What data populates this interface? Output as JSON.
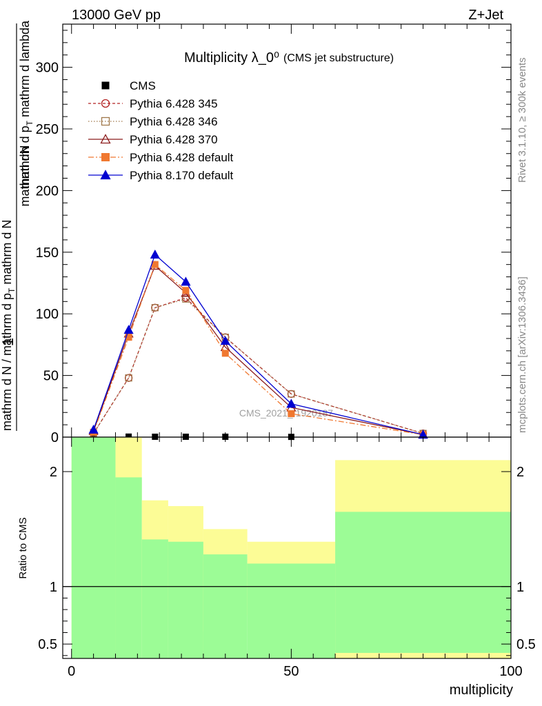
{
  "header": {
    "left": "13000 GeV pp",
    "right": "Z+Jet"
  },
  "side_labels": {
    "rivet": "Rivet 3.1.10, ≥ 300k events",
    "mcplots": "mcplots.cern.ch [arXiv:1306.3436]"
  },
  "chart_data": [
    {
      "type": "line",
      "title": "Multiplicity λ_0⁰",
      "subtitle": "(CMS jet substructure)",
      "ylabel_top": "1",
      "ylabel_top_parts": [
        "mathrm dN",
        "mathrm d p",
        "T",
        " mathrm d lambda"
      ],
      "ylabel_bottom": "mathrm d N / mathrm d p",
      "ylabel_bottom_sub": "T",
      "ylabel_bottom_end": " mathrm d N",
      "watermark": "CMS_2021_I1920187",
      "xlim": [
        -2,
        100
      ],
      "ylim": [
        0,
        335
      ],
      "yticks": [
        0,
        50,
        100,
        150,
        200,
        250,
        300
      ],
      "x": [
        5,
        13,
        19,
        26,
        35,
        50,
        80
      ],
      "series": [
        {
          "name": "CMS",
          "color": "#000000",
          "marker": "square-filled",
          "dash": "none",
          "values": [
            0.3,
            0.4,
            0.3,
            0.3,
            0.3,
            0.2,
            0.0
          ]
        },
        {
          "name": "Pythia 6.428 345",
          "color": "#b22222",
          "marker": "circle-open",
          "dash": "4,3",
          "values": [
            3,
            48,
            105,
            113,
            81,
            35,
            3
          ]
        },
        {
          "name": "Pythia 6.428 346",
          "color": "#a0784b",
          "marker": "square-open",
          "dash": "1.5,2.5",
          "values": [
            3,
            48,
            105,
            112,
            81,
            35,
            3
          ]
        },
        {
          "name": "Pythia 6.428 370",
          "color": "#8b1a1a",
          "marker": "triangle-open",
          "dash": "none",
          "values": [
            5,
            84,
            139,
            117,
            73,
            24,
            2
          ]
        },
        {
          "name": "Pythia 6.428 default",
          "color": "#f07830",
          "marker": "square-filled",
          "dash": "8,3,2,3",
          "values": [
            4,
            81,
            140,
            119,
            68,
            19,
            2
          ]
        },
        {
          "name": "Pythia 8.170 default",
          "color": "#0000d0",
          "marker": "triangle-filled",
          "dash": "none",
          "values": [
            6,
            87,
            148,
            126,
            78,
            27,
            2
          ]
        }
      ]
    },
    {
      "type": "area",
      "ylabel": "Ratio to CMS",
      "xlabel": "multiplicity",
      "xlim": [
        -2,
        100
      ],
      "xticks": [
        0,
        50,
        100
      ],
      "ylim": [
        0.375,
        2.3
      ],
      "yticks": [
        0.5,
        1,
        2
      ],
      "reference_line": 1,
      "bins": [
        0,
        10,
        16,
        22,
        30,
        40,
        60,
        100
      ],
      "band_colors": {
        "inner": "#9cfc96",
        "outer": "#fcfc96"
      },
      "inner_band": {
        "lo": [
          0.375,
          0.375,
          0.375,
          0.375,
          0.375,
          0.375,
          0.375
        ],
        "hi": [
          2.3,
          1.95,
          1.41,
          1.39,
          1.28,
          1.2,
          1.65
        ]
      },
      "outer_band": {
        "lo": [
          0.375,
          0.375,
          0.71,
          0.375,
          0.61,
          0.75,
          0.375
        ],
        "hi": [
          2.3,
          2.3,
          1.75,
          1.7,
          1.5,
          1.39,
          2.1
        ]
      }
    }
  ]
}
